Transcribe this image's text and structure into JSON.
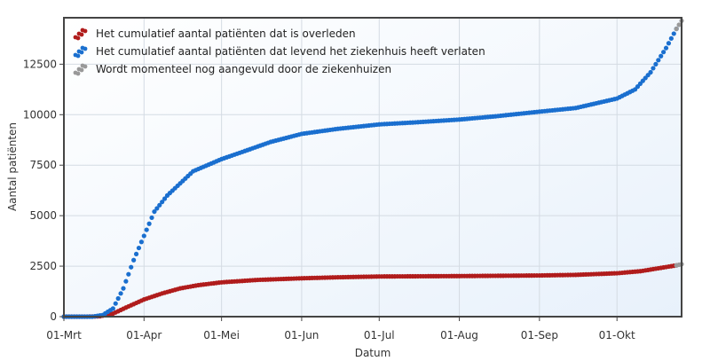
{
  "chart_data": {
    "type": "scatter",
    "xlabel": "Datum",
    "ylabel": "Aantal patiënten",
    "ylim": [
      0,
      14800
    ],
    "xlim": [
      "2020-03-01",
      "2020-10-26"
    ],
    "y_ticks": [
      0,
      2500,
      5000,
      7500,
      10000,
      12500
    ],
    "y_tick_labels": [
      "0",
      "2500",
      "5000",
      "7500",
      "10000",
      "12500"
    ],
    "x_ticks": [
      "2020-03-01",
      "2020-04-01",
      "2020-05-01",
      "2020-06-01",
      "2020-07-01",
      "2020-08-01",
      "2020-09-01",
      "2020-10-01"
    ],
    "x_tick_labels": [
      "01-Mrt",
      "01-Apr",
      "01-Mei",
      "01-Jun",
      "01-Jul",
      "01-Aug",
      "01-Sep",
      "01-Okt"
    ],
    "grid": true,
    "legend_position": "top-left",
    "series": [
      {
        "name": "Het cumulatief aantal patiënten dat is overleden",
        "color": "#b01c1c",
        "points": [
          [
            "2020-03-01",
            0
          ],
          [
            "2020-03-10",
            0
          ],
          [
            "2020-03-15",
            20
          ],
          [
            "2020-03-20",
            150
          ],
          [
            "2020-03-25",
            450
          ],
          [
            "2020-04-01",
            850
          ],
          [
            "2020-04-08",
            1150
          ],
          [
            "2020-04-15",
            1400
          ],
          [
            "2020-04-22",
            1560
          ],
          [
            "2020-05-01",
            1700
          ],
          [
            "2020-05-15",
            1820
          ],
          [
            "2020-06-01",
            1900
          ],
          [
            "2020-06-15",
            1950
          ],
          [
            "2020-07-01",
            1990
          ],
          [
            "2020-08-01",
            2010
          ],
          [
            "2020-09-01",
            2040
          ],
          [
            "2020-09-15",
            2070
          ],
          [
            "2020-10-01",
            2150
          ],
          [
            "2020-10-10",
            2250
          ],
          [
            "2020-10-24",
            2540
          ]
        ]
      },
      {
        "name": "Het cumulatief aantal patiënten dat levend het ziekenhuis heeft verlaten",
        "color": "#1a6fcf",
        "points": [
          [
            "2020-03-01",
            0
          ],
          [
            "2020-03-12",
            0
          ],
          [
            "2020-03-16",
            80
          ],
          [
            "2020-03-20",
            400
          ],
          [
            "2020-03-24",
            1400
          ],
          [
            "2020-03-28",
            2800
          ],
          [
            "2020-04-01",
            4000
          ],
          [
            "2020-04-05",
            5200
          ],
          [
            "2020-04-10",
            6000
          ],
          [
            "2020-04-15",
            6600
          ],
          [
            "2020-04-20",
            7200
          ],
          [
            "2020-05-01",
            7800
          ],
          [
            "2020-05-10",
            8200
          ],
          [
            "2020-05-20",
            8650
          ],
          [
            "2020-06-01",
            9050
          ],
          [
            "2020-06-15",
            9300
          ],
          [
            "2020-07-01",
            9520
          ],
          [
            "2020-07-15",
            9620
          ],
          [
            "2020-08-01",
            9760
          ],
          [
            "2020-08-15",
            9920
          ],
          [
            "2020-09-01",
            10150
          ],
          [
            "2020-09-15",
            10330
          ],
          [
            "2020-10-01",
            10800
          ],
          [
            "2020-10-08",
            11250
          ],
          [
            "2020-10-14",
            12100
          ],
          [
            "2020-10-20",
            13300
          ],
          [
            "2020-10-24",
            14250
          ]
        ]
      },
      {
        "name": "Wordt momenteel nog aangevuld door de ziekenhuizen",
        "color": "#999999",
        "points": [
          [
            "2020-10-24",
            14250
          ],
          [
            "2020-10-26",
            14650
          ],
          [
            "2020-10-24",
            2540
          ],
          [
            "2020-10-26",
            2600
          ]
        ]
      }
    ]
  }
}
